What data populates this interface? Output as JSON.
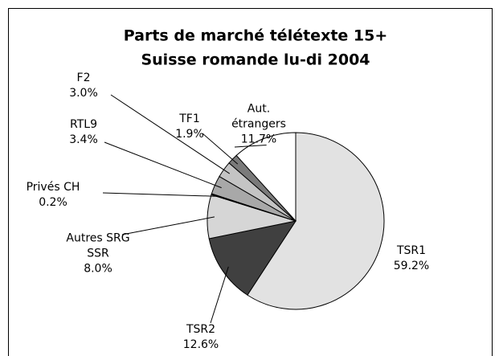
{
  "chart_data": {
    "type": "pie",
    "title": [
      "Parts de marché télétexte 15+",
      "Suisse romande lu-di 2004"
    ],
    "categories": [
      "TSR1",
      "TSR2",
      "Autres SRG SSR",
      "Privés CH",
      "RTL9",
      "F2",
      "TF1",
      "Aut. étrangers"
    ],
    "values": [
      59.2,
      12.6,
      8.0,
      0.2,
      3.4,
      3.0,
      1.9,
      11.7
    ],
    "value_labels": [
      "59.2%",
      "12.6%",
      "8.0%",
      "0.2%",
      "3.4%",
      "3.0%",
      "1.9%",
      "11.7%"
    ],
    "colors": [
      "#e2e2e2",
      "#404040",
      "#d6d6d6",
      "#000000",
      "#a8a8a8",
      "#c4c4c4",
      "#7a7a7a",
      "#ffffff"
    ]
  }
}
